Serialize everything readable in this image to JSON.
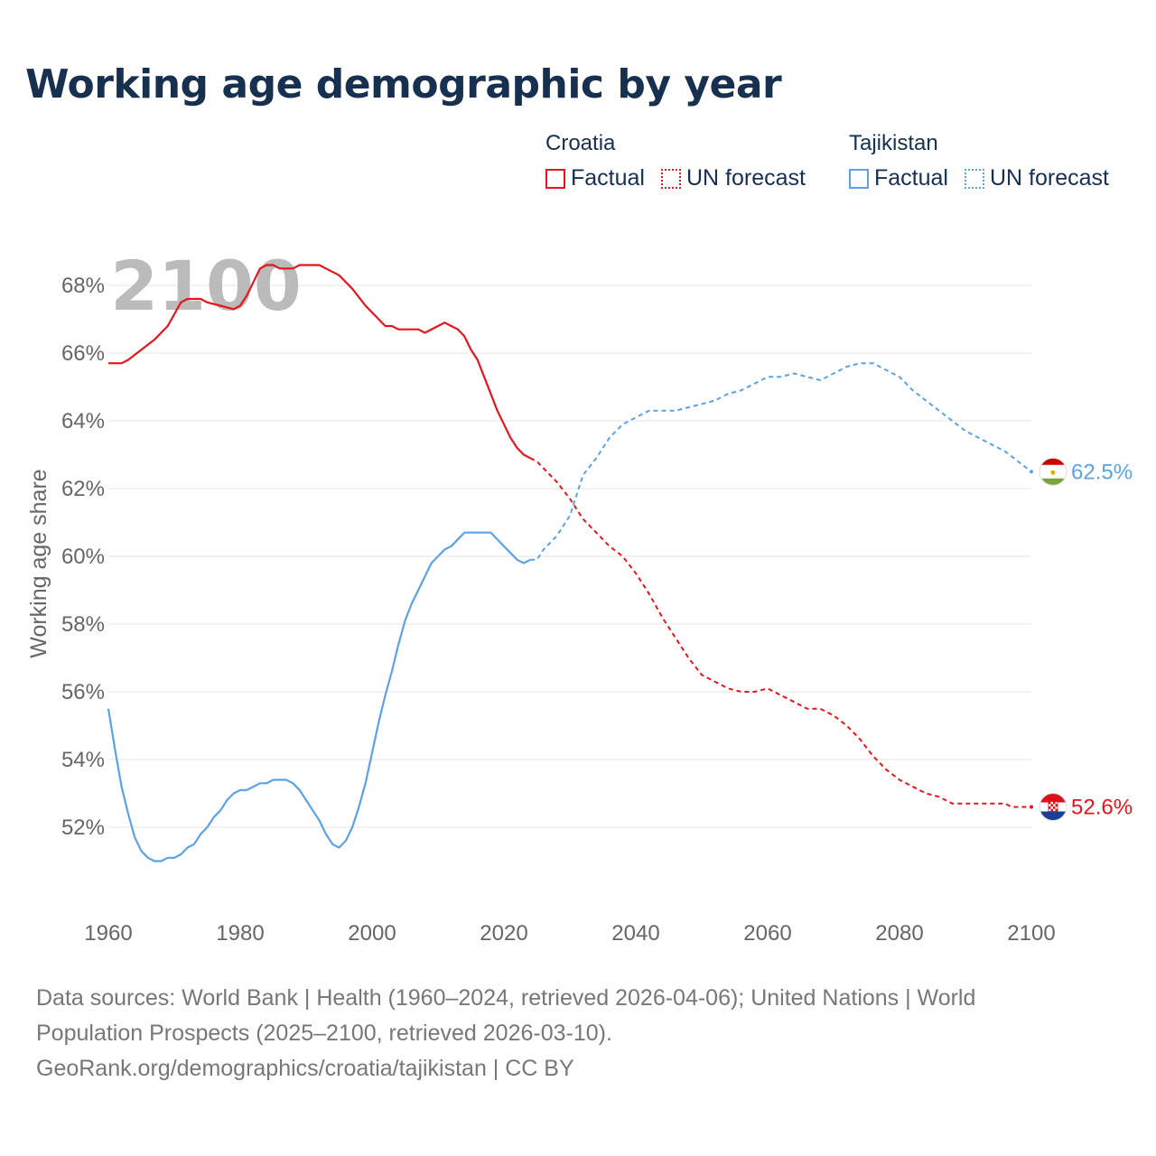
{
  "title": "Working age demographic by year",
  "legend": {
    "groups": [
      {
        "country": "Croatia",
        "color": "#e8141c",
        "factual_label": "Factual",
        "forecast_label": "UN forecast"
      },
      {
        "country": "Tajikistan",
        "color": "#5ba2e6",
        "factual_label": "Factual",
        "forecast_label": "UN forecast"
      }
    ]
  },
  "watermark_year": "2100",
  "end_labels": {
    "croatia": "52.6%",
    "tajikistan": "62.5%"
  },
  "source": {
    "line1": "Data sources: World Bank | Health (1960–2024, retrieved 2026-04-06); United Nations | World",
    "line2": "Population Prospects (2025–2100, retrieved 2026-03-10).",
    "line3": "GeoRank.org/demographics/croatia/tajikistan | CC BY"
  },
  "chart_data": {
    "type": "line",
    "title": "Working age demographic by year",
    "xlabel": "",
    "ylabel": "Working age share",
    "xlim": [
      1960,
      2100
    ],
    "ylim": [
      50,
      69.5
    ],
    "x_ticks": [
      1960,
      1980,
      2000,
      2020,
      2040,
      2060,
      2080,
      2100
    ],
    "x_tick_labels": [
      "1960",
      "1980",
      "2000",
      "2020",
      "2040",
      "2060",
      "2080",
      "2100"
    ],
    "y_ticks": [
      52,
      54,
      56,
      58,
      60,
      62,
      64,
      66,
      68
    ],
    "y_tick_labels": [
      "52%",
      "54%",
      "56%",
      "58%",
      "60%",
      "62%",
      "64%",
      "66%",
      "68%"
    ],
    "grid": true,
    "forecast_start": 2024,
    "series": [
      {
        "name": "Croatia",
        "color": "#e8141c",
        "points": [
          [
            1960,
            65.7
          ],
          [
            1962,
            65.7
          ],
          [
            1963,
            65.8
          ],
          [
            1965,
            66.1
          ],
          [
            1967,
            66.4
          ],
          [
            1969,
            66.8
          ],
          [
            1971,
            67.5
          ],
          [
            1972,
            67.6
          ],
          [
            1974,
            67.6
          ],
          [
            1975,
            67.5
          ],
          [
            1977,
            67.4
          ],
          [
            1979,
            67.3
          ],
          [
            1980,
            67.4
          ],
          [
            1981,
            67.7
          ],
          [
            1982,
            68.1
          ],
          [
            1983,
            68.5
          ],
          [
            1984,
            68.6
          ],
          [
            1985,
            68.6
          ],
          [
            1986,
            68.5
          ],
          [
            1988,
            68.5
          ],
          [
            1989,
            68.6
          ],
          [
            1990,
            68.6
          ],
          [
            1992,
            68.6
          ],
          [
            1993,
            68.5
          ],
          [
            1995,
            68.3
          ],
          [
            1997,
            67.9
          ],
          [
            1999,
            67.4
          ],
          [
            2000,
            67.2
          ],
          [
            2002,
            66.8
          ],
          [
            2003,
            66.8
          ],
          [
            2004,
            66.7
          ],
          [
            2007,
            66.7
          ],
          [
            2008,
            66.6
          ],
          [
            2010,
            66.8
          ],
          [
            2011,
            66.9
          ],
          [
            2012,
            66.8
          ],
          [
            2013,
            66.7
          ],
          [
            2014,
            66.5
          ],
          [
            2015,
            66.1
          ],
          [
            2016,
            65.8
          ],
          [
            2017,
            65.3
          ],
          [
            2018,
            64.8
          ],
          [
            2019,
            64.3
          ],
          [
            2020,
            63.9
          ],
          [
            2021,
            63.5
          ],
          [
            2022,
            63.2
          ],
          [
            2023,
            63.0
          ],
          [
            2024,
            62.9
          ],
          [
            2025,
            62.8
          ],
          [
            2027,
            62.4
          ],
          [
            2028,
            62.2
          ],
          [
            2030,
            61.7
          ],
          [
            2032,
            61.1
          ],
          [
            2034,
            60.7
          ],
          [
            2036,
            60.3
          ],
          [
            2038,
            60.0
          ],
          [
            2040,
            59.5
          ],
          [
            2042,
            58.9
          ],
          [
            2044,
            58.2
          ],
          [
            2046,
            57.6
          ],
          [
            2048,
            57.0
          ],
          [
            2050,
            56.5
          ],
          [
            2052,
            56.3
          ],
          [
            2054,
            56.1
          ],
          [
            2056,
            56.0
          ],
          [
            2058,
            56.0
          ],
          [
            2060,
            56.1
          ],
          [
            2062,
            55.9
          ],
          [
            2064,
            55.7
          ],
          [
            2066,
            55.5
          ],
          [
            2068,
            55.5
          ],
          [
            2070,
            55.3
          ],
          [
            2072,
            55.0
          ],
          [
            2074,
            54.6
          ],
          [
            2076,
            54.1
          ],
          [
            2078,
            53.7
          ],
          [
            2080,
            53.4
          ],
          [
            2082,
            53.2
          ],
          [
            2084,
            53.0
          ],
          [
            2086,
            52.9
          ],
          [
            2088,
            52.7
          ],
          [
            2090,
            52.7
          ],
          [
            2092,
            52.7
          ],
          [
            2094,
            52.7
          ],
          [
            2096,
            52.7
          ],
          [
            2097,
            52.6
          ],
          [
            2100,
            52.6
          ]
        ]
      },
      {
        "name": "Tajikistan",
        "color": "#5ba2e6",
        "points": [
          [
            1960,
            55.5
          ],
          [
            1961,
            54.3
          ],
          [
            1962,
            53.2
          ],
          [
            1963,
            52.4
          ],
          [
            1964,
            51.7
          ],
          [
            1965,
            51.3
          ],
          [
            1966,
            51.1
          ],
          [
            1967,
            51.0
          ],
          [
            1968,
            51.0
          ],
          [
            1969,
            51.1
          ],
          [
            1970,
            51.1
          ],
          [
            1971,
            51.2
          ],
          [
            1972,
            51.4
          ],
          [
            1973,
            51.5
          ],
          [
            1974,
            51.8
          ],
          [
            1975,
            52.0
          ],
          [
            1976,
            52.3
          ],
          [
            1977,
            52.5
          ],
          [
            1978,
            52.8
          ],
          [
            1979,
            53.0
          ],
          [
            1980,
            53.1
          ],
          [
            1981,
            53.1
          ],
          [
            1982,
            53.2
          ],
          [
            1983,
            53.3
          ],
          [
            1984,
            53.3
          ],
          [
            1985,
            53.4
          ],
          [
            1987,
            53.4
          ],
          [
            1988,
            53.3
          ],
          [
            1989,
            53.1
          ],
          [
            1990,
            52.8
          ],
          [
            1991,
            52.5
          ],
          [
            1992,
            52.2
          ],
          [
            1993,
            51.8
          ],
          [
            1994,
            51.5
          ],
          [
            1995,
            51.4
          ],
          [
            1996,
            51.6
          ],
          [
            1997,
            52.0
          ],
          [
            1998,
            52.6
          ],
          [
            1999,
            53.3
          ],
          [
            2000,
            54.2
          ],
          [
            2001,
            55.1
          ],
          [
            2002,
            55.9
          ],
          [
            2003,
            56.6
          ],
          [
            2004,
            57.4
          ],
          [
            2005,
            58.1
          ],
          [
            2006,
            58.6
          ],
          [
            2007,
            59.0
          ],
          [
            2008,
            59.4
          ],
          [
            2009,
            59.8
          ],
          [
            2010,
            60.0
          ],
          [
            2011,
            60.2
          ],
          [
            2012,
            60.3
          ],
          [
            2013,
            60.5
          ],
          [
            2014,
            60.7
          ],
          [
            2018,
            60.7
          ],
          [
            2019,
            60.5
          ],
          [
            2020,
            60.3
          ],
          [
            2021,
            60.1
          ],
          [
            2022,
            59.9
          ],
          [
            2023,
            59.8
          ],
          [
            2024,
            59.9
          ],
          [
            2025,
            59.9
          ],
          [
            2026,
            60.2
          ],
          [
            2028,
            60.6
          ],
          [
            2030,
            61.2
          ],
          [
            2031,
            61.8
          ],
          [
            2032,
            62.4
          ],
          [
            2034,
            62.9
          ],
          [
            2036,
            63.5
          ],
          [
            2038,
            63.9
          ],
          [
            2040,
            64.1
          ],
          [
            2042,
            64.3
          ],
          [
            2044,
            64.3
          ],
          [
            2046,
            64.3
          ],
          [
            2048,
            64.4
          ],
          [
            2050,
            64.5
          ],
          [
            2052,
            64.6
          ],
          [
            2054,
            64.8
          ],
          [
            2056,
            64.9
          ],
          [
            2058,
            65.1
          ],
          [
            2060,
            65.3
          ],
          [
            2062,
            65.3
          ],
          [
            2064,
            65.4
          ],
          [
            2066,
            65.3
          ],
          [
            2068,
            65.2
          ],
          [
            2070,
            65.4
          ],
          [
            2072,
            65.6
          ],
          [
            2074,
            65.7
          ],
          [
            2076,
            65.7
          ],
          [
            2078,
            65.5
          ],
          [
            2080,
            65.3
          ],
          [
            2082,
            64.9
          ],
          [
            2084,
            64.6
          ],
          [
            2086,
            64.3
          ],
          [
            2088,
            64.0
          ],
          [
            2090,
            63.7
          ],
          [
            2092,
            63.5
          ],
          [
            2094,
            63.3
          ],
          [
            2096,
            63.1
          ],
          [
            2098,
            62.8
          ],
          [
            2100,
            62.5
          ]
        ]
      }
    ]
  }
}
